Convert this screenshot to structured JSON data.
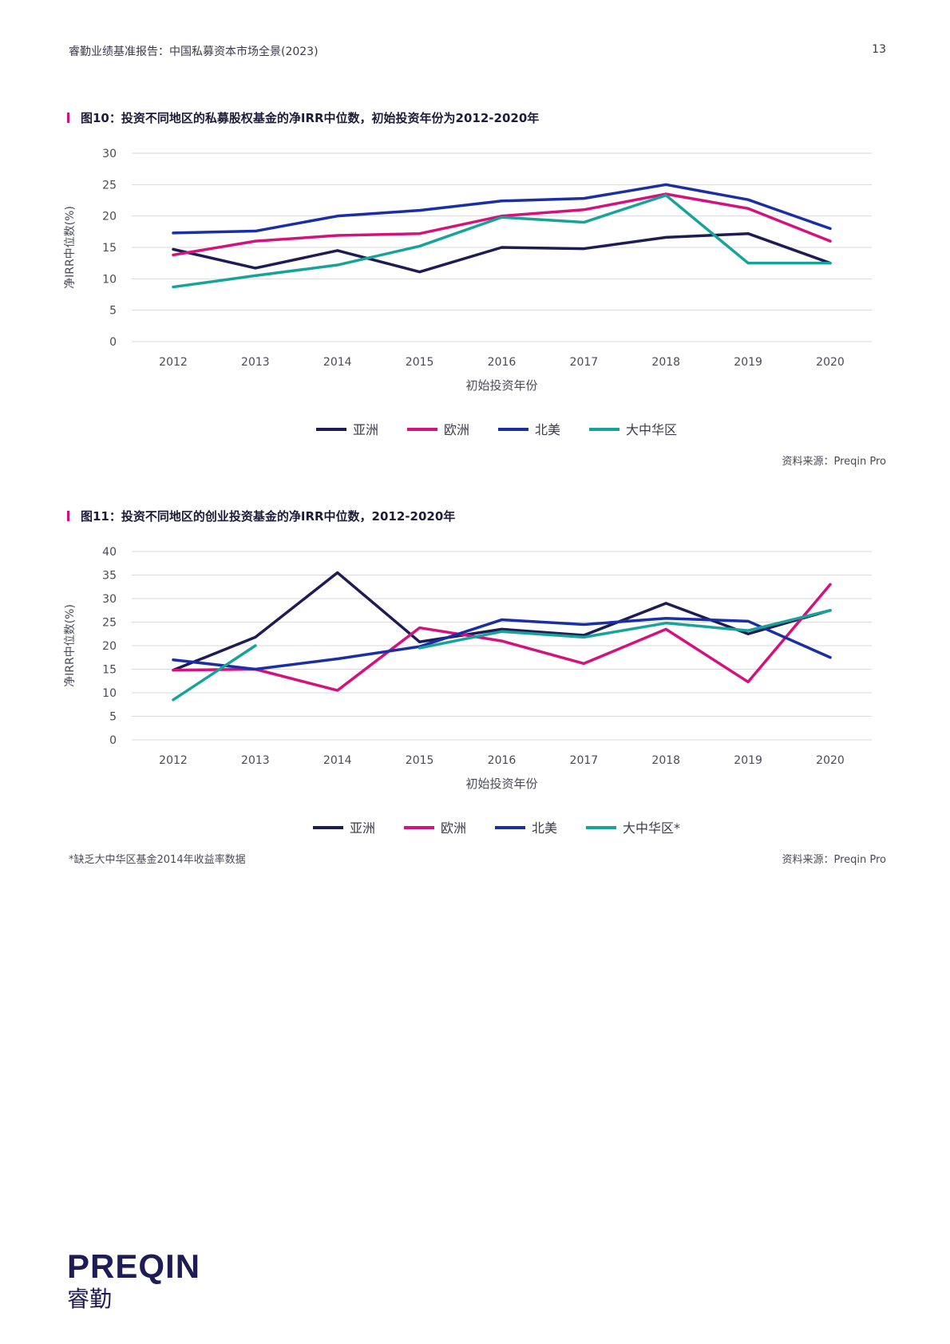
{
  "header": {
    "title": "睿勤业绩基准报告：中国私募资本市场全景(2023)",
    "page_number": "13"
  },
  "charts": [
    {
      "title": "图10：投资不同地区的私募股权基金的净IRR中位数，初始投资年份为2012-2020年",
      "source": "资料来源：Preqin Pro",
      "footnote": ""
    },
    {
      "title": "图11：投资不同地区的创业投资基金的净IRR中位数，2012-2020年",
      "source": "资料来源：Preqin Pro",
      "footnote": "*缺乏大中华区基金2014年收益率数据"
    }
  ],
  "chart_data": [
    {
      "type": "line",
      "title": "图10：投资不同地区的私募股权基金的净IRR中位数，初始投资年份为2012-2020年",
      "xlabel": "初始投资年份",
      "ylabel": "净IRR中位数(%)",
      "categories": [
        "2012",
        "2013",
        "2014",
        "2015",
        "2016",
        "2017",
        "2018",
        "2019",
        "2020"
      ],
      "ylim": [
        0,
        30
      ],
      "yticks": [
        0,
        5,
        10,
        15,
        20,
        25,
        30
      ],
      "grid": true,
      "legend_position": "bottom",
      "series": [
        {
          "name": "亚洲",
          "color": "#1e1b55",
          "values": [
            14.7,
            11.7,
            14.5,
            11.1,
            15.0,
            14.8,
            16.6,
            17.2,
            12.5
          ]
        },
        {
          "name": "欧洲",
          "color": "#d4127e",
          "values": [
            13.8,
            16.0,
            16.9,
            17.2,
            20.0,
            21.0,
            23.5,
            21.2,
            16.0
          ]
        },
        {
          "name": "北美",
          "color": "#1a2ea6",
          "values": [
            17.3,
            17.6,
            20.0,
            20.9,
            22.4,
            22.8,
            25.0,
            22.6,
            18.0
          ]
        },
        {
          "name": "大中华区",
          "color": "#17a39a",
          "values": [
            8.7,
            10.5,
            12.2,
            15.2,
            19.8,
            19.0,
            23.3,
            12.5,
            12.5
          ]
        }
      ]
    },
    {
      "type": "line",
      "title": "图11：投资不同地区的创业投资基金的净IRR中位数，2012-2020年",
      "xlabel": "初始投资年份",
      "ylabel": "净IRR中位数(%)",
      "categories": [
        "2012",
        "2013",
        "2014",
        "2015",
        "2016",
        "2017",
        "2018",
        "2019",
        "2020"
      ],
      "ylim": [
        0,
        40
      ],
      "yticks": [
        0,
        5,
        10,
        15,
        20,
        25,
        30,
        35,
        40
      ],
      "grid": true,
      "legend_position": "bottom",
      "series": [
        {
          "name": "亚洲",
          "color": "#1e1b55",
          "values": [
            14.8,
            21.8,
            35.5,
            20.8,
            23.5,
            22.2,
            29.0,
            22.5,
            27.5
          ]
        },
        {
          "name": "欧洲",
          "color": "#d4127e",
          "values": [
            14.8,
            15.0,
            10.5,
            23.8,
            21.0,
            16.2,
            23.5,
            12.3,
            33.0
          ]
        },
        {
          "name": "北美",
          "color": "#1a2ea6",
          "values": [
            17.0,
            15.0,
            17.2,
            19.8,
            25.5,
            24.5,
            25.8,
            25.2,
            17.5
          ]
        },
        {
          "name": "大中华区*",
          "color": "#17a39a",
          "values": [
            8.5,
            20.0,
            null,
            19.5,
            23.0,
            21.8,
            24.8,
            23.2,
            27.5
          ]
        }
      ]
    }
  ],
  "logo": {
    "word": "PREQIN",
    "cn": "睿勤"
  }
}
